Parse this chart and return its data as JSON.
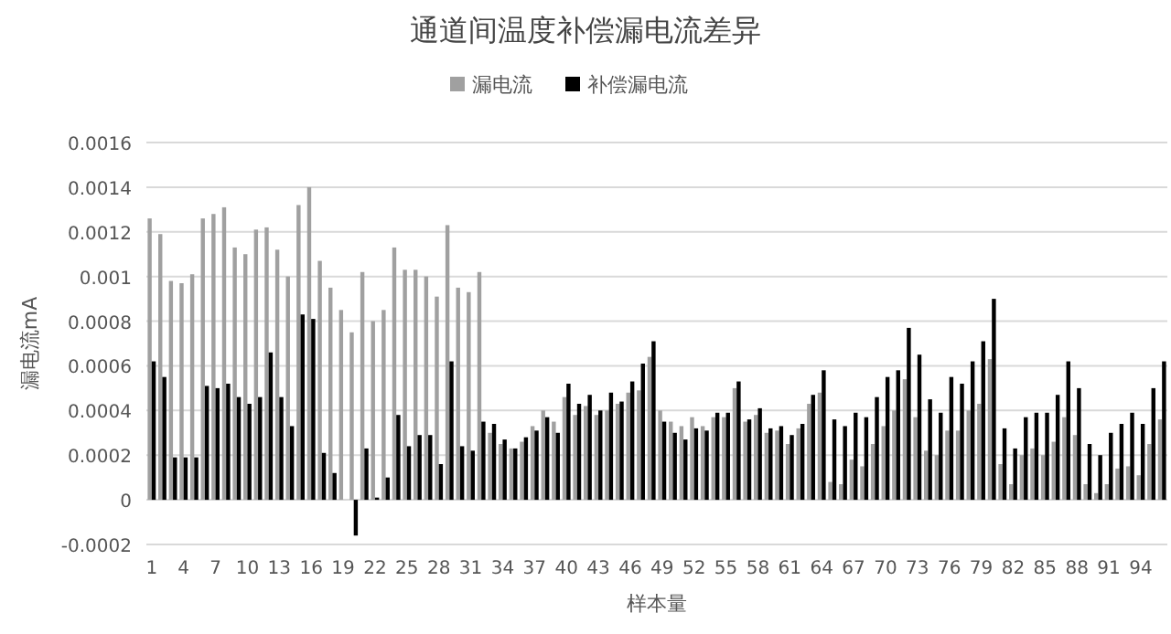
{
  "chart_data": {
    "type": "bar",
    "title": "通道间温度补偿漏电流差异",
    "xlabel": "样本量",
    "ylabel": "漏电流mA",
    "categories": [
      "1",
      null,
      null,
      "4",
      null,
      null,
      "7",
      null,
      null,
      "10",
      null,
      null,
      "13",
      null,
      null,
      "16",
      null,
      null,
      "19",
      null,
      null,
      "22",
      null,
      null,
      "25",
      null,
      null,
      "28",
      null,
      null,
      "31",
      null,
      null,
      "34",
      null,
      null,
      "37",
      null,
      null,
      "40",
      null,
      null,
      "43",
      null,
      null,
      "46",
      null,
      null,
      "49",
      null,
      null,
      "52",
      null,
      null,
      "55",
      null,
      null,
      "58",
      null,
      null,
      "61",
      null,
      null,
      "64",
      null,
      null,
      "67",
      null,
      null,
      "70",
      null,
      null,
      "73",
      null,
      null,
      "76",
      null,
      null,
      "79",
      null,
      null,
      "82",
      null,
      null,
      "85",
      null,
      null,
      "88",
      null,
      null,
      "91",
      null,
      null,
      "94",
      null,
      null
    ],
    "series": [
      {
        "name": "漏电流",
        "color": "#a0a0a0",
        "values": [
          0.00126,
          0.00119,
          0.00098,
          0.00097,
          0.00101,
          0.00126,
          0.00128,
          0.00131,
          0.00113,
          0.0011,
          0.00121,
          0.00122,
          0.00112,
          0.001,
          0.00132,
          0.0014,
          0.00107,
          0.00095,
          0.00085,
          0.00075,
          0.00102,
          0.0008,
          0.00085,
          0.00113,
          0.00103,
          0.00103,
          0.001,
          0.00091,
          0.00123,
          0.00095,
          0.00093,
          0.00102,
          0.0003,
          0.00025,
          0.00023,
          0.00026,
          0.00033,
          0.0004,
          0.00035,
          0.00046,
          0.00038,
          0.00042,
          0.00038,
          0.0004,
          0.00043,
          0.00048,
          0.00049,
          0.00064,
          0.0004,
          0.00035,
          0.00033,
          0.00037,
          0.00033,
          0.00037,
          0.00037,
          0.0005,
          0.00035,
          0.00038,
          0.0003,
          0.00031,
          0.00025,
          0.00032,
          0.00043,
          0.00048,
          8e-05,
          7e-05,
          0.00018,
          0.00015,
          0.00025,
          0.00033,
          0.0004,
          0.00054,
          0.00037,
          0.00022,
          0.0002,
          0.00031,
          0.00031,
          0.0004,
          0.00043,
          0.00063,
          0.00016,
          7e-05,
          0.0002,
          0.00023,
          0.0002,
          0.00026,
          0.00037,
          0.00029,
          7e-05,
          3e-05,
          7e-05,
          0.00014,
          0.00015,
          0.00011,
          0.00025,
          0.00036
        ]
      },
      {
        "name": "补偿漏电流",
        "color": "#000000",
        "values": [
          0.00062,
          0.00055,
          0.00019,
          0.00019,
          0.00019,
          0.00051,
          0.0005,
          0.00052,
          0.00046,
          0.00043,
          0.00046,
          0.00066,
          0.00046,
          0.00033,
          0.00083,
          0.00081,
          0.00021,
          0.00012,
          0,
          -0.00016,
          0.00023,
          1e-05,
          0.0001,
          0.00038,
          0.00024,
          0.00029,
          0.00029,
          0.00016,
          0.00062,
          0.00024,
          0.00022,
          0.00035,
          0.00034,
          0.00027,
          0.00023,
          0.00028,
          0.00031,
          0.00037,
          0.0003,
          0.00052,
          0.00043,
          0.00047,
          0.0004,
          0.00048,
          0.00044,
          0.00053,
          0.00061,
          0.00071,
          0.00035,
          0.0003,
          0.00027,
          0.00032,
          0.00031,
          0.00039,
          0.00039,
          0.00053,
          0.00036,
          0.00041,
          0.00032,
          0.00033,
          0.00029,
          0.00034,
          0.00047,
          0.00058,
          0.00036,
          0.00033,
          0.00039,
          0.00037,
          0.00046,
          0.00055,
          0.00058,
          0.00077,
          0.00065,
          0.00045,
          0.00039,
          0.00055,
          0.00052,
          0.00062,
          0.00071,
          0.0009,
          0.00032,
          0.00023,
          0.00037,
          0.00039,
          0.00039,
          0.00047,
          0.00062,
          0.0005,
          0.00025,
          0.0002,
          0.0003,
          0.00034,
          0.00039,
          0.00034,
          0.0005,
          0.00062
        ]
      }
    ],
    "ylim": [
      -0.0002,
      0.0016
    ],
    "yticks": [
      -0.0002,
      0,
      0.0002,
      0.0004,
      0.0006,
      0.0008,
      0.001,
      0.0012,
      0.0014,
      0.0016
    ],
    "grid": "y",
    "legend": "top"
  }
}
